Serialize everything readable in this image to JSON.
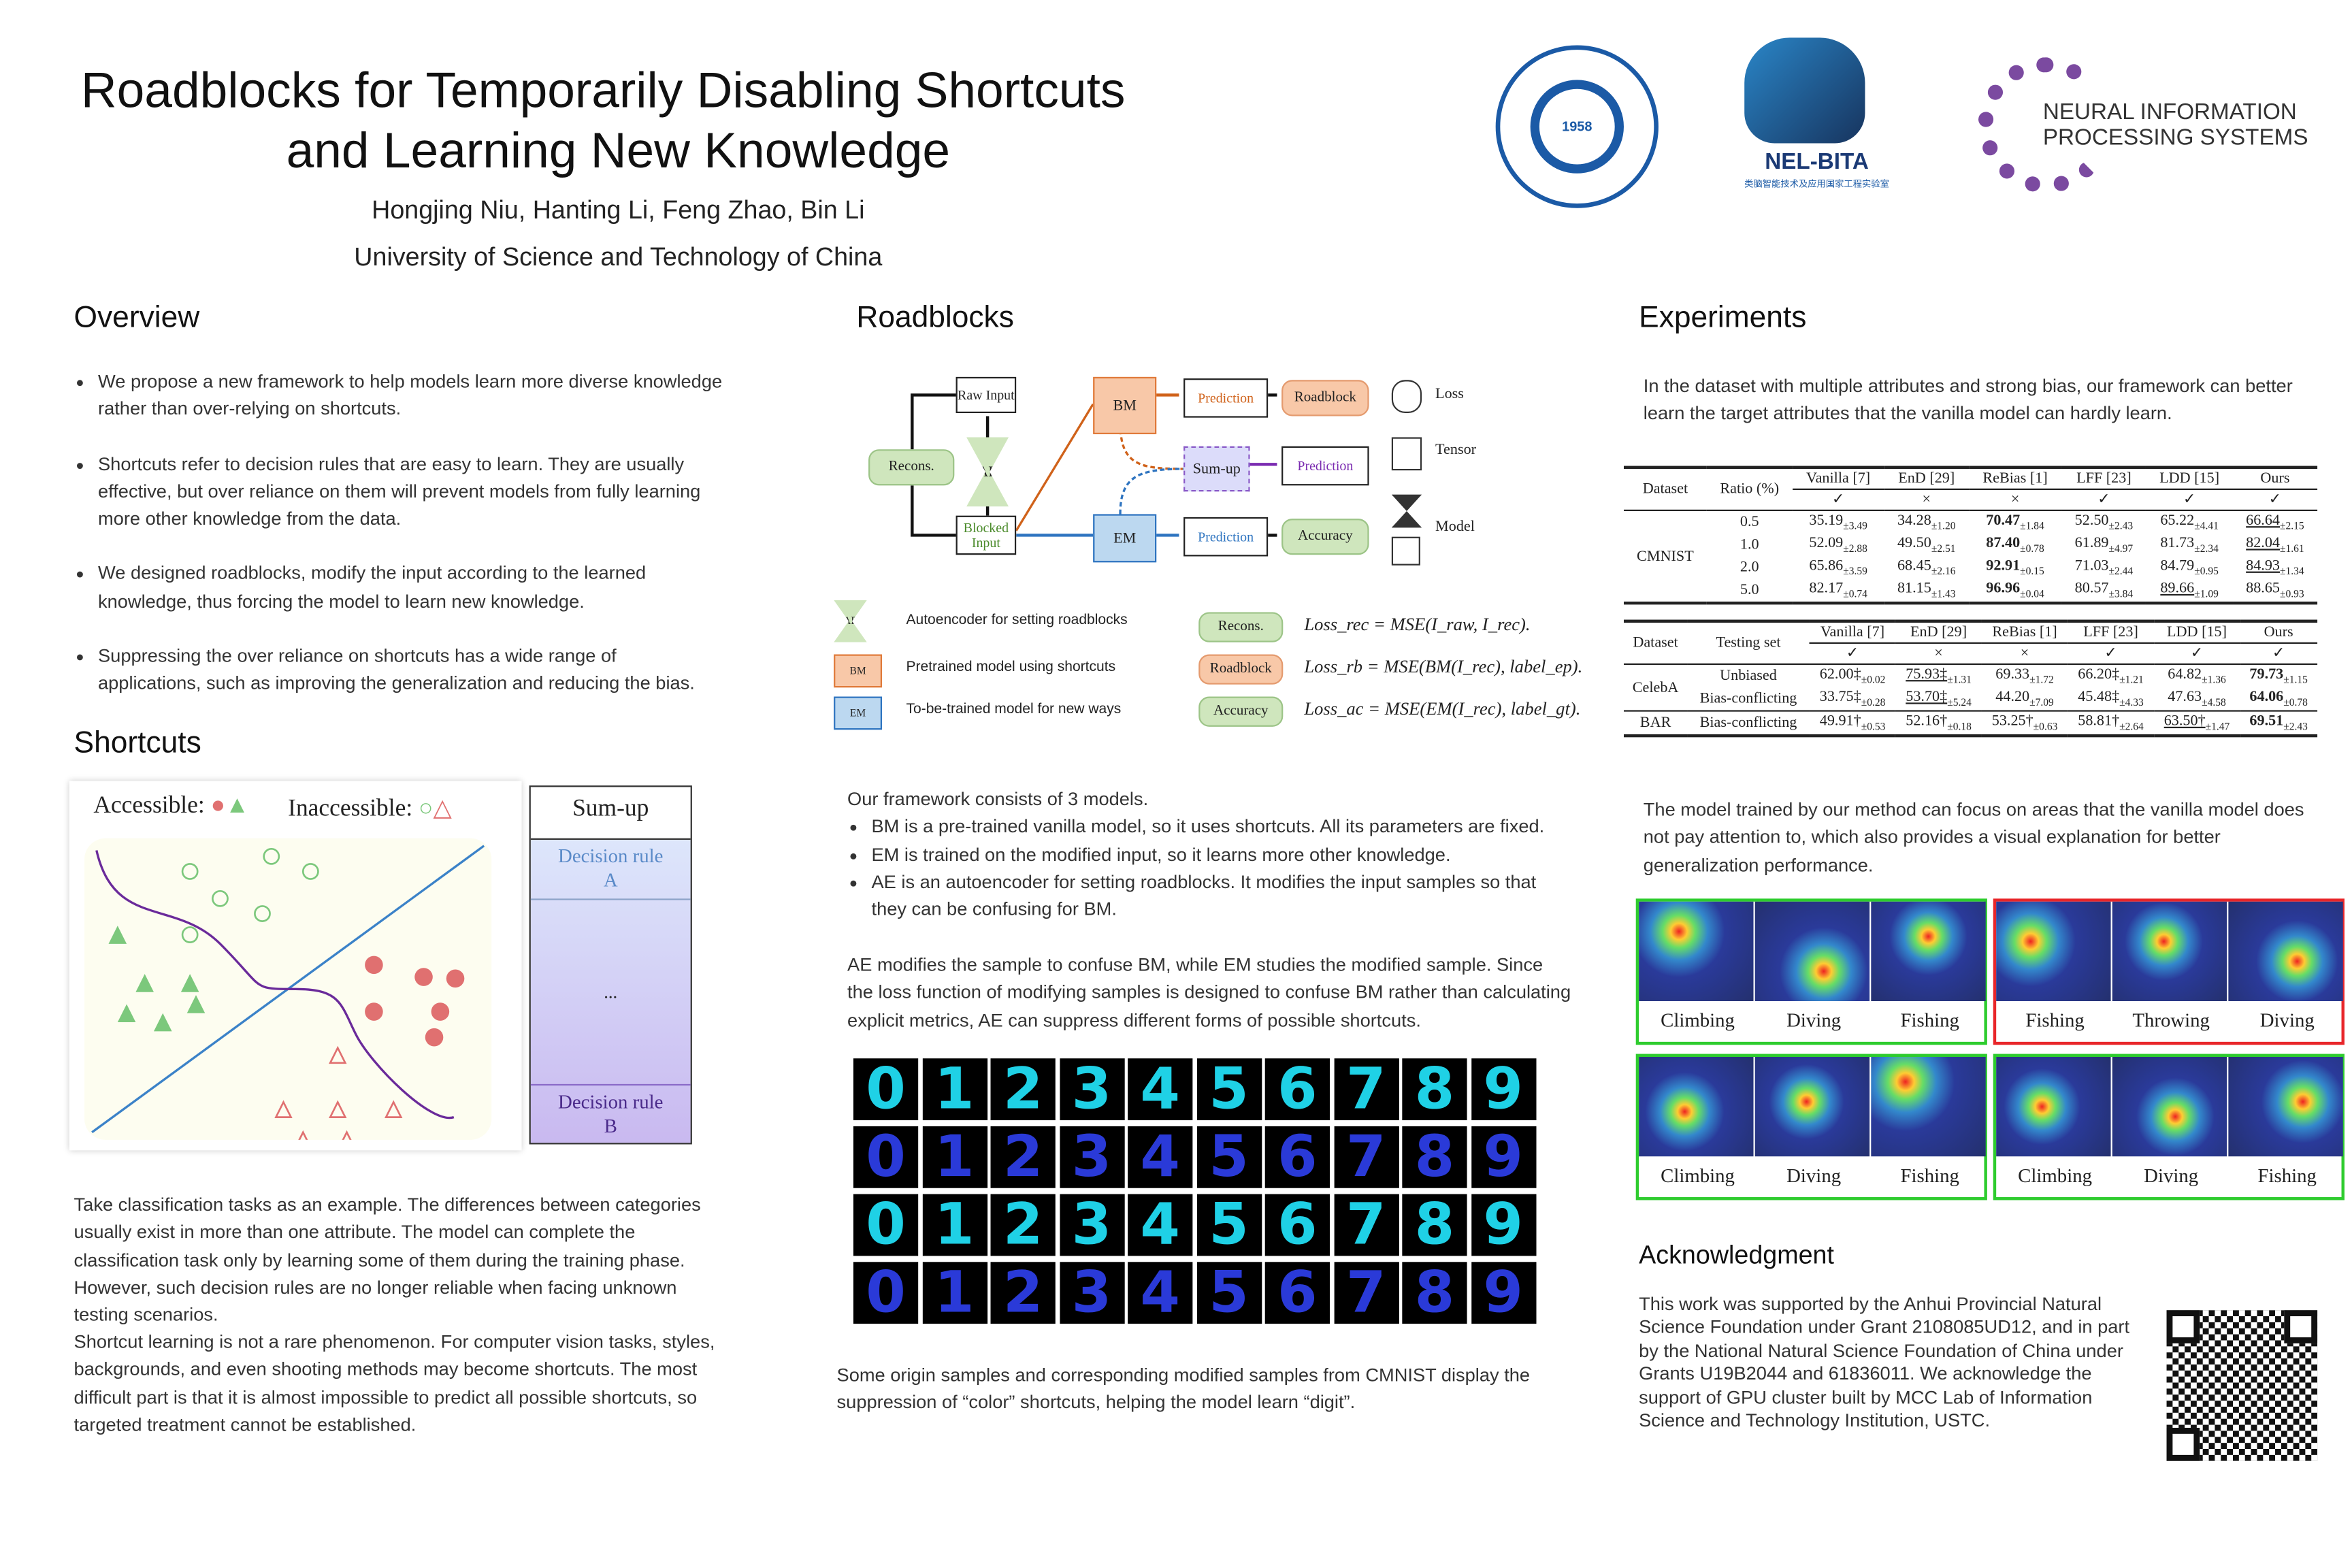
{
  "header": {
    "title_line1": "Roadblocks for Temporarily Disabling Shortcuts",
    "title_line2": "and Learning New Knowledge",
    "authors": "Hongjing Niu, Hanting Li, Feng Zhao, Bin Li",
    "affiliation": "University of Science and Technology of China",
    "logos": {
      "ustc_year": "1958",
      "ustc_text": "University of Science and Technology of China",
      "nelbita": "NEL-BITA",
      "nelbita_sub": "类脑智能技术及应用国家工程实验室",
      "neurips_line1": "NEURAL INFORMATION",
      "neurips_line2": "PROCESSING SYSTEMS"
    }
  },
  "overview": {
    "heading": "Overview",
    "bullets": [
      "We propose a new framework to help models learn more diverse knowledge rather than over-relying on shortcuts.",
      "Shortcuts refer to decision rules that are easy to learn. They are usually effective,  but over reliance on them will prevent models from fully learning more other knowledge from the data.",
      "We designed roadblocks, modify the input according to the learned knowledge, thus forcing the model to learn new knowledge.",
      "Suppressing the over reliance on shortcuts has a wide range of applications, such as improving the generalization and reducing the bias."
    ]
  },
  "shortcuts": {
    "heading": "Shortcuts",
    "accessible": "Accessible:",
    "inaccessible": "Inaccessible:",
    "sumup": "Sum-up",
    "rule_a": "Decision rule A",
    "ellipsis": "...",
    "rule_b": "Decision rule B",
    "para1": "Take classification tasks as an example. The differences between categories usually exist in more than one attribute. The model can complete the classification task only by learning some of them during the training phase. However,  such decision rules are no longer reliable when facing unknown testing scenarios.",
    "para2": "Shortcut learning is not a rare phenomenon. For computer vision tasks, styles, backgrounds, and even shooting methods may become shortcuts. The most difficult part is that it is almost impossible to predict all possible shortcuts, so targeted treatment cannot be established."
  },
  "roadblocks": {
    "heading": "Roadblocks",
    "diagram": {
      "raw_input": "Raw Input",
      "recons": "Recons.",
      "ae": "AE",
      "blocked_input": "Blocked Input",
      "bm": "BM",
      "em": "EM",
      "sumup": "Sum-up",
      "prediction": "Prediction",
      "roadblock": "Roadblock",
      "accuracy": "Accuracy",
      "loss": "Loss",
      "tensor": "Tensor",
      "model": "Model"
    },
    "legend": [
      {
        "icon": "AE",
        "text": "Autoencoder for setting roadblocks"
      },
      {
        "icon": "BM",
        "text": "Pretrained model using shortcuts"
      },
      {
        "icon": "EM",
        "text": "To-be-trained model for new ways"
      }
    ],
    "losses": [
      {
        "label": "Recons.",
        "formula": "Loss_rec = MSE(I_raw, I_rec)."
      },
      {
        "label": "Roadblock",
        "formula": "Loss_rb = MSE(BM(I_rec), label_ep)."
      },
      {
        "label": "Accuracy",
        "formula": "Loss_ac = MSE(EM(I_rec), label_gt)."
      }
    ],
    "framework_intro": "Our framework  consists of 3 models.",
    "framework_bullets": [
      "BM is a pre-trained vanilla model, so it uses shortcuts. All its parameters are fixed.",
      "EM is trained on the modified input, so it learns more other knowledge.",
      "AE is an autoencoder for setting roadblocks. It modifies the input samples so that they can be confusing for BM."
    ],
    "para": "AE modifies the sample to confuse BM, while EM studies the modified sample. Since the loss function of modifying samples is designed to confuse BM rather than calculating explicit  metrics, AE can suppress different forms of possible shortcuts.",
    "digits": [
      "0",
      "1",
      "2",
      "3",
      "4",
      "5",
      "6",
      "7",
      "8",
      "9"
    ],
    "digit_caption": "Some origin samples and corresponding modified samples from CMNIST display the suppression of “color” shortcuts, helping the model learn “digit”."
  },
  "experiments": {
    "heading": "Experiments",
    "intro": "In the dataset with multiple attributes and strong bias, our framework  can better learn the target attributes that the vanilla model can hardly learn.",
    "methods": [
      "Vanilla [7]",
      "EnD [29]",
      "ReBias [1]",
      "LFF [23]",
      "LDD [15]",
      "Ours"
    ],
    "marks": [
      "✓",
      "×",
      "×",
      "✓",
      "✓",
      "✓"
    ],
    "table1": {
      "col_dataset": "Dataset",
      "col_ratio": "Ratio (%)",
      "dataset": "CMNIST",
      "rows": [
        {
          "ratio": "0.5",
          "cells": [
            [
              "35.19",
              "±3.49",
              ""
            ],
            [
              "34.28",
              "±1.20",
              ""
            ],
            [
              "70.47",
              "±1.84",
              "b"
            ],
            [
              "52.50",
              "±2.43",
              ""
            ],
            [
              "65.22",
              "±4.41",
              ""
            ],
            [
              "66.64",
              "±2.15",
              "u"
            ]
          ]
        },
        {
          "ratio": "1.0",
          "cells": [
            [
              "52.09",
              "±2.88",
              ""
            ],
            [
              "49.50",
              "±2.51",
              ""
            ],
            [
              "87.40",
              "±0.78",
              "b"
            ],
            [
              "61.89",
              "±4.97",
              ""
            ],
            [
              "81.73",
              "±2.34",
              ""
            ],
            [
              "82.04",
              "±1.61",
              "u"
            ]
          ]
        },
        {
          "ratio": "2.0",
          "cells": [
            [
              "65.86",
              "±3.59",
              ""
            ],
            [
              "68.45",
              "±2.16",
              ""
            ],
            [
              "92.91",
              "±0.15",
              "b"
            ],
            [
              "71.03",
              "±2.44",
              ""
            ],
            [
              "84.79",
              "±0.95",
              ""
            ],
            [
              "84.93",
              "±1.34",
              "u"
            ]
          ]
        },
        {
          "ratio": "5.0",
          "cells": [
            [
              "82.17",
              "±0.74",
              ""
            ],
            [
              "81.15",
              "±1.43",
              ""
            ],
            [
              "96.96",
              "±0.04",
              "b"
            ],
            [
              "80.57",
              "±3.84",
              ""
            ],
            [
              "89.66",
              "±1.09",
              "u"
            ],
            [
              "88.65",
              "±0.93",
              ""
            ]
          ]
        }
      ]
    },
    "table2": {
      "col_dataset": "Dataset",
      "col_testing": "Testing set",
      "rows": [
        {
          "dataset": "CelebA",
          "set": "Unbiased",
          "cells": [
            [
              "62.00‡",
              "±0.02",
              ""
            ],
            [
              "75.93‡",
              "±1.31",
              "u"
            ],
            [
              "69.33",
              "±1.72",
              ""
            ],
            [
              "66.20‡",
              "±1.21",
              ""
            ],
            [
              "64.82",
              "±1.36",
              ""
            ],
            [
              "79.73",
              "±1.15",
              "b"
            ]
          ]
        },
        {
          "dataset": "",
          "set": "Bias-conflicting",
          "cells": [
            [
              "33.75‡",
              "±0.28",
              ""
            ],
            [
              "53.70‡",
              "±5.24",
              "u"
            ],
            [
              "44.20",
              "±7.09",
              ""
            ],
            [
              "45.48‡",
              "±4.33",
              ""
            ],
            [
              "47.63",
              "±4.58",
              ""
            ],
            [
              "64.06",
              "±0.78",
              "b"
            ]
          ]
        },
        {
          "dataset": "BAR",
          "set": "Bias-conflicting",
          "cells": [
            [
              "49.91†",
              "±0.53",
              ""
            ],
            [
              "52.16†",
              "±0.18",
              ""
            ],
            [
              "53.25†",
              "±0.63",
              ""
            ],
            [
              "58.81†",
              "±2.64",
              ""
            ],
            [
              "63.50†",
              "±1.47",
              "u"
            ],
            [
              "69.51",
              "±2.43",
              "b"
            ]
          ]
        }
      ]
    },
    "heatmap_intro": "The model trained by our method can focus on areas that the vanilla model does not pay attention to, which also provides a visual explanation for better generalization performance.",
    "heatmap_groups": [
      {
        "labels": [
          "Climbing",
          "Diving",
          "Fishing"
        ],
        "color": "#2ecc2e"
      },
      {
        "labels": [
          "Fishing",
          "Throwing",
          "Diving"
        ],
        "color": "#e8262a"
      },
      {
        "labels": [
          "Climbing",
          "Diving",
          "Fishing"
        ],
        "color": "#2ecc2e"
      },
      {
        "labels": [
          "Climbing",
          "Diving",
          "Fishing"
        ],
        "color": "#2ecc2e"
      }
    ]
  },
  "acknowledgment": {
    "heading": "Acknowledgment",
    "text": "This work was supported by the Anhui Provincial Natural Science Foundation under Grant 2108085UD12, and in part by the National Natural Science Foundation of China under Grants U19B2044 and 61836011. We acknowledge the support of GPU cluster built by MCC Lab of Information Science and Technology Institution, USTC."
  }
}
